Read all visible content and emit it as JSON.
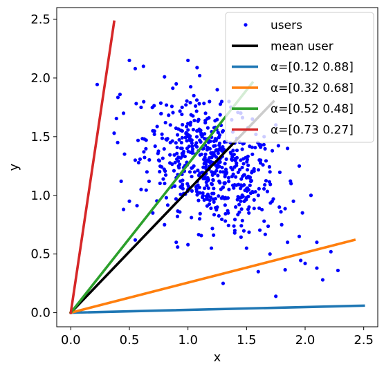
{
  "chart_data": {
    "type": "scatter",
    "xlabel": "x",
    "ylabel": "y",
    "xlim": [
      -0.12,
      2.62
    ],
    "ylim": [
      -0.12,
      2.6
    ],
    "xticks": [
      0.0,
      0.5,
      1.0,
      1.5,
      2.0,
      2.5
    ],
    "yticks": [
      0.0,
      0.5,
      1.0,
      1.5,
      2.0,
      2.5
    ],
    "xtick_labels": [
      "0.0",
      "0.5",
      "1.0",
      "1.5",
      "2.0",
      "2.5"
    ],
    "ytick_labels": [
      "0.0",
      "0.5",
      "1.0",
      "1.5",
      "2.0",
      "2.5"
    ],
    "grid": false,
    "legend_position": "top-right",
    "scatter": {
      "name": "users",
      "color": "#0000ff",
      "center": [
        1.2,
        1.25
      ],
      "points": [
        [
          0.37,
          1.53
        ],
        [
          0.42,
          1.86
        ],
        [
          0.43,
          1.12
        ],
        [
          0.45,
          0.88
        ],
        [
          0.5,
          2.15
        ],
        [
          0.55,
          2.08
        ],
        [
          0.62,
          2.1
        ],
        [
          0.55,
          0.62
        ],
        [
          0.6,
          1.75
        ],
        [
          0.7,
          1.55
        ],
        [
          0.8,
          2.01
        ],
        [
          0.9,
          1.95
        ],
        [
          1.0,
          2.15
        ],
        [
          1.1,
          2.02
        ],
        [
          0.65,
          1.2
        ],
        [
          0.75,
          1.3
        ],
        [
          0.85,
          1.6
        ],
        [
          0.95,
          1.75
        ],
        [
          1.05,
          1.85
        ],
        [
          1.15,
          1.7
        ],
        [
          1.25,
          1.9
        ],
        [
          1.35,
          1.8
        ],
        [
          1.45,
          1.7
        ],
        [
          1.55,
          1.65
        ],
        [
          1.65,
          1.5
        ],
        [
          1.75,
          1.6
        ],
        [
          1.85,
          1.4
        ],
        [
          1.95,
          1.25
        ],
        [
          2.05,
          1.0
        ],
        [
          1.9,
          0.95
        ],
        [
          1.8,
          0.75
        ],
        [
          1.7,
          0.5
        ],
        [
          1.85,
          0.6
        ],
        [
          1.95,
          0.65
        ],
        [
          2.0,
          0.42
        ],
        [
          2.1,
          0.38
        ],
        [
          2.15,
          0.28
        ],
        [
          2.22,
          0.52
        ],
        [
          2.28,
          0.36
        ],
        [
          2.1,
          0.6
        ],
        [
          1.3,
          0.25
        ],
        [
          1.75,
          0.14
        ],
        [
          1.6,
          0.35
        ],
        [
          1.5,
          0.55
        ],
        [
          1.4,
          0.7
        ],
        [
          1.2,
          0.55
        ],
        [
          1.0,
          0.58
        ],
        [
          0.9,
          0.6
        ],
        [
          0.8,
          0.75
        ],
        [
          0.7,
          0.85
        ],
        [
          0.6,
          1.05
        ],
        [
          0.55,
          1.3
        ],
        [
          0.45,
          1.7
        ],
        [
          0.4,
          1.45
        ],
        [
          0.5,
          0.95
        ],
        [
          1.1,
          0.8
        ],
        [
          1.25,
          0.9
        ],
        [
          1.45,
          0.95
        ],
        [
          1.6,
          1.0
        ],
        [
          1.7,
          1.2
        ],
        [
          1.55,
          1.35
        ],
        [
          1.4,
          1.45
        ],
        [
          1.3,
          1.2
        ],
        [
          1.2,
          1.1
        ],
        [
          1.15,
          1.35
        ],
        [
          1.05,
          1.25
        ],
        [
          0.95,
          1.4
        ],
        [
          1.0,
          1.05
        ],
        [
          0.9,
          1.15
        ],
        [
          0.85,
          1.45
        ],
        [
          1.3,
          1.55
        ],
        [
          1.35,
          1.05
        ],
        [
          1.5,
          1.15
        ],
        [
          1.45,
          1.3
        ],
        [
          1.62,
          1.3
        ],
        [
          1.12,
          1.5
        ],
        [
          1.02,
          1.6
        ],
        [
          0.92,
          1.25
        ],
        [
          1.22,
          1.42
        ],
        [
          1.28,
          1.32
        ],
        [
          1.18,
          1.22
        ],
        [
          1.38,
          1.22
        ],
        [
          1.08,
          1.12
        ],
        [
          1.32,
          0.98
        ],
        [
          1.52,
          0.85
        ],
        [
          1.65,
          0.78
        ],
        [
          1.78,
          0.9
        ],
        [
          1.88,
          1.1
        ],
        [
          1.72,
          1.38
        ],
        [
          1.58,
          1.52
        ]
      ]
    },
    "lines": [
      {
        "name": "mean user",
        "color": "#000000",
        "x": [
          0.0,
          1.73
        ],
        "y": [
          0.0,
          1.8
        ]
      },
      {
        "name": "α=[0.12 0.88]",
        "color": "#1f77b4",
        "x": [
          0.0,
          2.5
        ],
        "y": [
          0.0,
          0.06
        ]
      },
      {
        "name": "α=[0.32 0.68]",
        "color": "#ff7f0e",
        "x": [
          0.0,
          2.42
        ],
        "y": [
          0.0,
          0.62
        ]
      },
      {
        "name": "α=[0.52 0.48]",
        "color": "#2ca02c",
        "x": [
          0.0,
          1.55
        ],
        "y": [
          0.0,
          1.96
        ]
      },
      {
        "name": "α=[0.73 0.27]",
        "color": "#d62728",
        "x": [
          0.0,
          0.37
        ],
        "y": [
          0.0,
          2.48
        ]
      }
    ],
    "legend": [
      {
        "label": "users",
        "kind": "marker",
        "color": "#0000ff"
      },
      {
        "label": "mean user",
        "kind": "line",
        "color": "#000000"
      },
      {
        "label": "α=[0.12 0.88]",
        "kind": "line",
        "color": "#1f77b4"
      },
      {
        "label": "α=[0.32 0.68]",
        "kind": "line",
        "color": "#ff7f0e"
      },
      {
        "label": "α=[0.52 0.48]",
        "kind": "line",
        "color": "#2ca02c"
      },
      {
        "label": "α=[0.73 0.27]",
        "kind": "line",
        "color": "#d62728"
      }
    ]
  }
}
